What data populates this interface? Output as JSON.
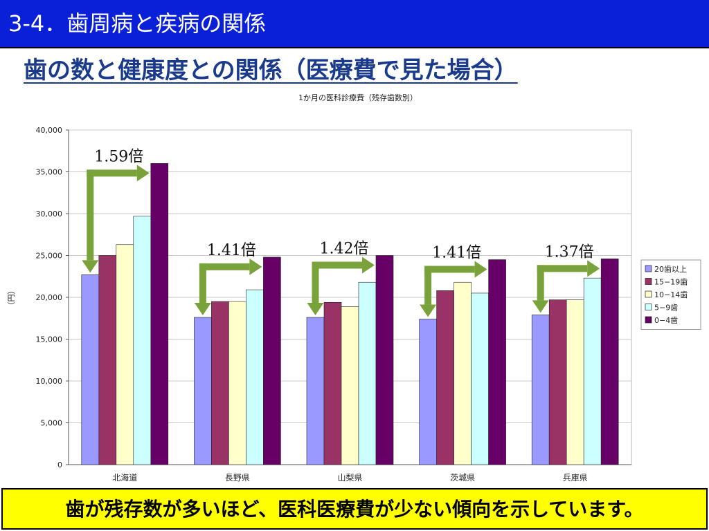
{
  "slide": {
    "title": "3-4．歯周病と疾病の関係",
    "heading": "歯の数と健康度との関係（医療費で見た場合）",
    "footer": "歯が残存数が多いほど、医科医療費が少ない傾向を示しています。"
  },
  "colors": {
    "title_bar": "#0a1fd8",
    "heading": "#1a3a8e",
    "footer_bg": "#ffff00",
    "arrow": "#79a33a"
  },
  "chart_data": {
    "type": "bar",
    "title": "1か月の医科診療費（残存歯数別）",
    "xlabel": "",
    "ylabel": "（円）",
    "ylim": [
      0,
      40000
    ],
    "yticks": [
      0,
      5000,
      10000,
      15000,
      20000,
      25000,
      30000,
      35000,
      40000
    ],
    "ytick_labels": [
      "0",
      "5,000",
      "10,000",
      "15,000",
      "20,000",
      "25,000",
      "30,000",
      "35,000",
      "40,000"
    ],
    "grid": true,
    "legend_position": "right",
    "categories": [
      "北海道",
      "長野県",
      "山梨県",
      "茨城県",
      "兵庫県"
    ],
    "series": [
      {
        "name": "20歯以上",
        "color": "#9999ff",
        "values": [
          22700,
          17600,
          17600,
          17400,
          17900
        ]
      },
      {
        "name": "15−19歯",
        "color": "#993366",
        "values": [
          25000,
          19500,
          19400,
          20800,
          19700
        ]
      },
      {
        "name": "10−14歯",
        "color": "#ffffcc",
        "values": [
          26300,
          19500,
          18900,
          21800,
          19700
        ]
      },
      {
        "name": "5−9歯",
        "color": "#ccffff",
        "values": [
          29700,
          20900,
          21800,
          20500,
          22300
        ]
      },
      {
        "name": "0−4歯",
        "color": "#660066",
        "values": [
          36000,
          24800,
          25000,
          24500,
          24600
        ]
      }
    ],
    "annotations": [
      "1.59倍",
      "1.41倍",
      "1.42倍",
      "1.41倍",
      "1.37倍"
    ]
  }
}
